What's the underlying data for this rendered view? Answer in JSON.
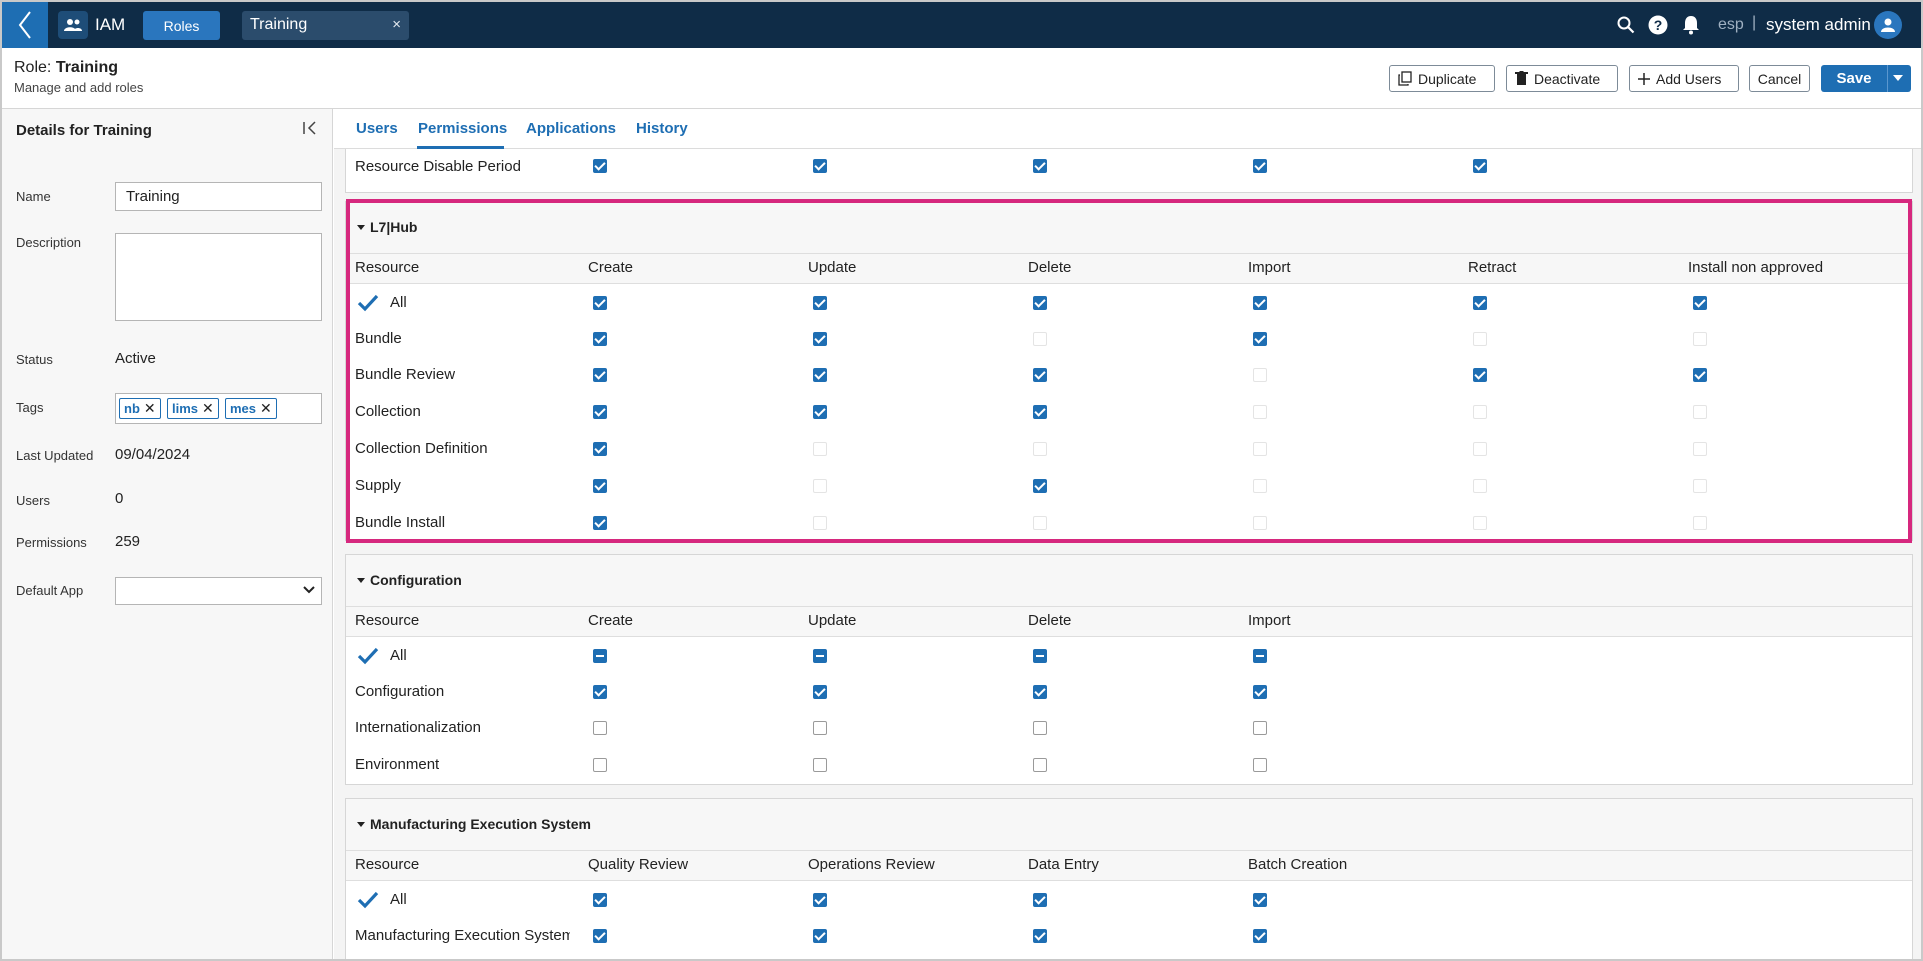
{
  "topbar": {
    "app_name": "IAM",
    "active_tab": "Roles",
    "doc_tab": "Training",
    "doc_tab_close": "×",
    "lang": "esp",
    "lang_sep": "|",
    "user": "system admin"
  },
  "header": {
    "role_prefix": "Role:",
    "role_name": "Training",
    "subtitle": "Manage and add roles",
    "buttons": {
      "duplicate": "Duplicate",
      "deactivate": "Deactivate",
      "add_users": "Add Users",
      "cancel": "Cancel",
      "save": "Save"
    }
  },
  "details": {
    "title": "Details for Training",
    "name_label": "Name",
    "name_value": "Training",
    "description_label": "Description",
    "status_label": "Status",
    "status_value": "Active",
    "tags_label": "Tags",
    "tags": [
      "nb",
      "lims",
      "mes"
    ],
    "last_updated_label": "Last Updated",
    "last_updated_value": "09/04/2024",
    "users_label": "Users",
    "users_value": "0",
    "permissions_label": "Permissions",
    "permissions_value": "259",
    "default_app_label": "Default App",
    "default_app_value": ""
  },
  "tabs": [
    "Users",
    "Permissions",
    "Applications",
    "History"
  ],
  "active_tab": "Permissions",
  "prev_row": {
    "label": "Resource Disable Period",
    "checks": [
      "on",
      "on",
      "on",
      "on",
      "on"
    ]
  },
  "sections": [
    {
      "title": "L7|Hub",
      "columns": [
        "Resource",
        "Create",
        "Update",
        "Delete",
        "Import",
        "Retract",
        "Install non approved"
      ],
      "rows": [
        {
          "label": "All",
          "checks": [
            "on",
            "on",
            "on",
            "on",
            "on",
            "on"
          ]
        },
        {
          "label": "Bundle",
          "checks": [
            "on",
            "on",
            "dis",
            "on",
            "dis",
            "dis"
          ]
        },
        {
          "label": "Bundle Review",
          "checks": [
            "on",
            "on",
            "on",
            "dis",
            "on",
            "on"
          ]
        },
        {
          "label": "Collection",
          "checks": [
            "on",
            "on",
            "on",
            "dis",
            "dis",
            "dis"
          ]
        },
        {
          "label": "Collection Definition",
          "checks": [
            "on",
            "dis",
            "dis",
            "dis",
            "dis",
            "dis"
          ]
        },
        {
          "label": "Supply",
          "checks": [
            "on",
            "dis",
            "on",
            "dis",
            "dis",
            "dis"
          ]
        },
        {
          "label": "Bundle Install",
          "checks": [
            "on",
            "dis",
            "dis",
            "dis",
            "dis",
            "dis"
          ]
        }
      ]
    },
    {
      "title": "Configuration",
      "columns": [
        "Resource",
        "Create",
        "Update",
        "Delete",
        "Import"
      ],
      "rows": [
        {
          "label": "All",
          "checks": [
            "ind",
            "ind",
            "ind",
            "ind"
          ]
        },
        {
          "label": "Configuration",
          "checks": [
            "on",
            "on",
            "on",
            "on"
          ]
        },
        {
          "label": "Internationalization",
          "checks": [
            "off",
            "off",
            "off",
            "off"
          ]
        },
        {
          "label": "Environment",
          "checks": [
            "off",
            "off",
            "off",
            "off"
          ]
        }
      ]
    },
    {
      "title": "Manufacturing Execution System",
      "columns": [
        "Resource",
        "Quality Review",
        "Operations Review",
        "Data Entry",
        "Batch Creation"
      ],
      "rows": [
        {
          "label": "All",
          "checks": [
            "on",
            "on",
            "on",
            "on"
          ]
        },
        {
          "label": "Manufacturing Execution System",
          "checks": [
            "on",
            "on",
            "on",
            "on"
          ]
        }
      ]
    }
  ],
  "colors": {
    "topbar": "#0f2c47",
    "accent": "#1e6eb3",
    "highlight": "#d6287e"
  }
}
